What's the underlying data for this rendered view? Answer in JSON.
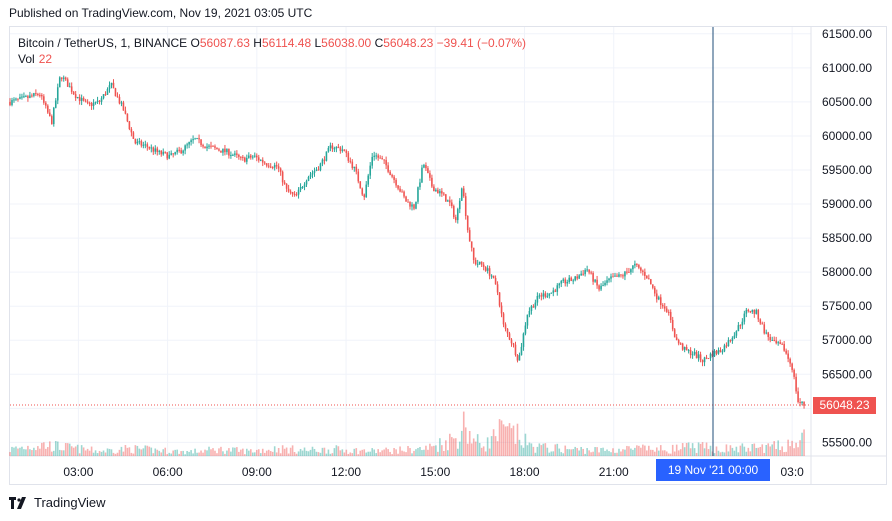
{
  "published": "Published on TradingView.com, Nov 19, 2021 03:05 UTC",
  "legend": {
    "symbol": "Bitcoin / TetherUS, 1, BINANCE",
    "open_label": "O",
    "open": "56087.63",
    "high_label": "H",
    "high": "56114.48",
    "low_label": "L",
    "low": "56038.00",
    "close_label": "C",
    "close": "56048.23",
    "change": "−39.41 (−0.07%)",
    "vol_label": "Vol",
    "vol": "22"
  },
  "price_badge": "56048.23",
  "date_badge": "19 Nov '21   00:00",
  "footer": {
    "brand": "TradingView"
  },
  "colors": {
    "up": "#26a69a",
    "down": "#ef5350",
    "crosshair": "#2962ff",
    "grid": "#f0f3fa"
  },
  "chart_data": {
    "type": "candlestick",
    "y_ticks": [
      "61500.00",
      "61000.00",
      "60500.00",
      "60000.00",
      "59500.00",
      "59000.00",
      "58500.00",
      "58000.00",
      "57500.00",
      "57000.00",
      "56500.00",
      "56000.00",
      "55500.00"
    ],
    "x_ticks": [
      "03:00",
      "06:00",
      "09:00",
      "12:00",
      "15:00",
      "18:00",
      "21:00",
      "03:0"
    ],
    "ylim": [
      55300,
      61600
    ],
    "grid": true,
    "last_price": 56048.23,
    "crosshair_time": "19 Nov '21 00:00",
    "price_path": [
      [
        0,
        60500
      ],
      [
        0.5,
        60550
      ],
      [
        1,
        60620
      ],
      [
        1.4,
        60200
      ],
      [
        1.7,
        60900
      ],
      [
        2.2,
        60600
      ],
      [
        2.6,
        60450
      ],
      [
        3,
        60500
      ],
      [
        3.4,
        60750
      ],
      [
        3.8,
        60400
      ],
      [
        4.2,
        59900
      ],
      [
        4.6,
        59850
      ],
      [
        5,
        59750
      ],
      [
        5.4,
        59700
      ],
      [
        5.8,
        59800
      ],
      [
        6.2,
        59950
      ],
      [
        6.6,
        59850
      ],
      [
        7,
        59800
      ],
      [
        7.4,
        59750
      ],
      [
        7.8,
        59650
      ],
      [
        8.2,
        59700
      ],
      [
        8.6,
        59600
      ],
      [
        9,
        59550
      ],
      [
        9.3,
        59200
      ],
      [
        9.6,
        59100
      ],
      [
        10,
        59400
      ],
      [
        10.4,
        59550
      ],
      [
        10.8,
        59850
      ],
      [
        11.2,
        59800
      ],
      [
        11.6,
        59500
      ],
      [
        11.9,
        59100
      ],
      [
        12.2,
        59750
      ],
      [
        12.6,
        59600
      ],
      [
        13,
        59300
      ],
      [
        13.3,
        59050
      ],
      [
        13.6,
        58950
      ],
      [
        13.9,
        59600
      ],
      [
        14.2,
        59250
      ],
      [
        14.5,
        59150
      ],
      [
        14.8,
        59000
      ],
      [
        15.0,
        58750
      ],
      [
        15.2,
        59300
      ],
      [
        15.4,
        58600
      ],
      [
        15.6,
        58150
      ],
      [
        15.9,
        58100
      ],
      [
        16.2,
        57950
      ],
      [
        16.4,
        57700
      ],
      [
        16.6,
        57200
      ],
      [
        16.9,
        56950
      ],
      [
        17.1,
        56700
      ],
      [
        17.4,
        57400
      ],
      [
        17.8,
        57650
      ],
      [
        18.2,
        57700
      ],
      [
        18.6,
        57850
      ],
      [
        19.0,
        57900
      ],
      [
        19.4,
        58050
      ],
      [
        19.8,
        57750
      ],
      [
        20.2,
        57900
      ],
      [
        20.6,
        57950
      ],
      [
        21.0,
        58100
      ],
      [
        21.4,
        57950
      ],
      [
        21.8,
        57600
      ],
      [
        22.1,
        57450
      ],
      [
        22.4,
        57000
      ],
      [
        22.7,
        56850
      ],
      [
        23.0,
        56800
      ],
      [
        23.3,
        56700
      ],
      [
        23.6,
        56800
      ],
      [
        23.9,
        56850
      ],
      [
        24.2,
        57000
      ],
      [
        24.5,
        57200
      ],
      [
        24.8,
        57450
      ],
      [
        25.1,
        57400
      ],
      [
        25.4,
        57100
      ],
      [
        25.7,
        56950
      ],
      [
        26.0,
        56900
      ],
      [
        26.3,
        56600
      ],
      [
        26.5,
        56100
      ],
      [
        26.7,
        56048
      ]
    ],
    "volume_profile": [
      [
        0,
        8
      ],
      [
        1,
        14
      ],
      [
        2,
        10
      ],
      [
        3,
        6
      ],
      [
        4,
        9
      ],
      [
        5,
        7
      ],
      [
        6,
        5
      ],
      [
        7,
        8
      ],
      [
        8,
        6
      ],
      [
        9,
        9
      ],
      [
        10,
        7
      ],
      [
        11,
        8
      ],
      [
        12,
        6
      ],
      [
        13,
        7
      ],
      [
        14,
        9
      ],
      [
        15,
        22
      ],
      [
        15.3,
        40
      ],
      [
        15.6,
        18
      ],
      [
        16,
        14
      ],
      [
        16.5,
        30
      ],
      [
        17,
        26
      ],
      [
        17.5,
        12
      ],
      [
        18,
        10
      ],
      [
        19,
        8
      ],
      [
        20,
        7
      ],
      [
        21,
        9
      ],
      [
        22,
        8
      ],
      [
        23,
        11
      ],
      [
        24,
        9
      ],
      [
        25,
        10
      ],
      [
        26,
        12
      ],
      [
        26.6,
        20
      ]
    ]
  }
}
